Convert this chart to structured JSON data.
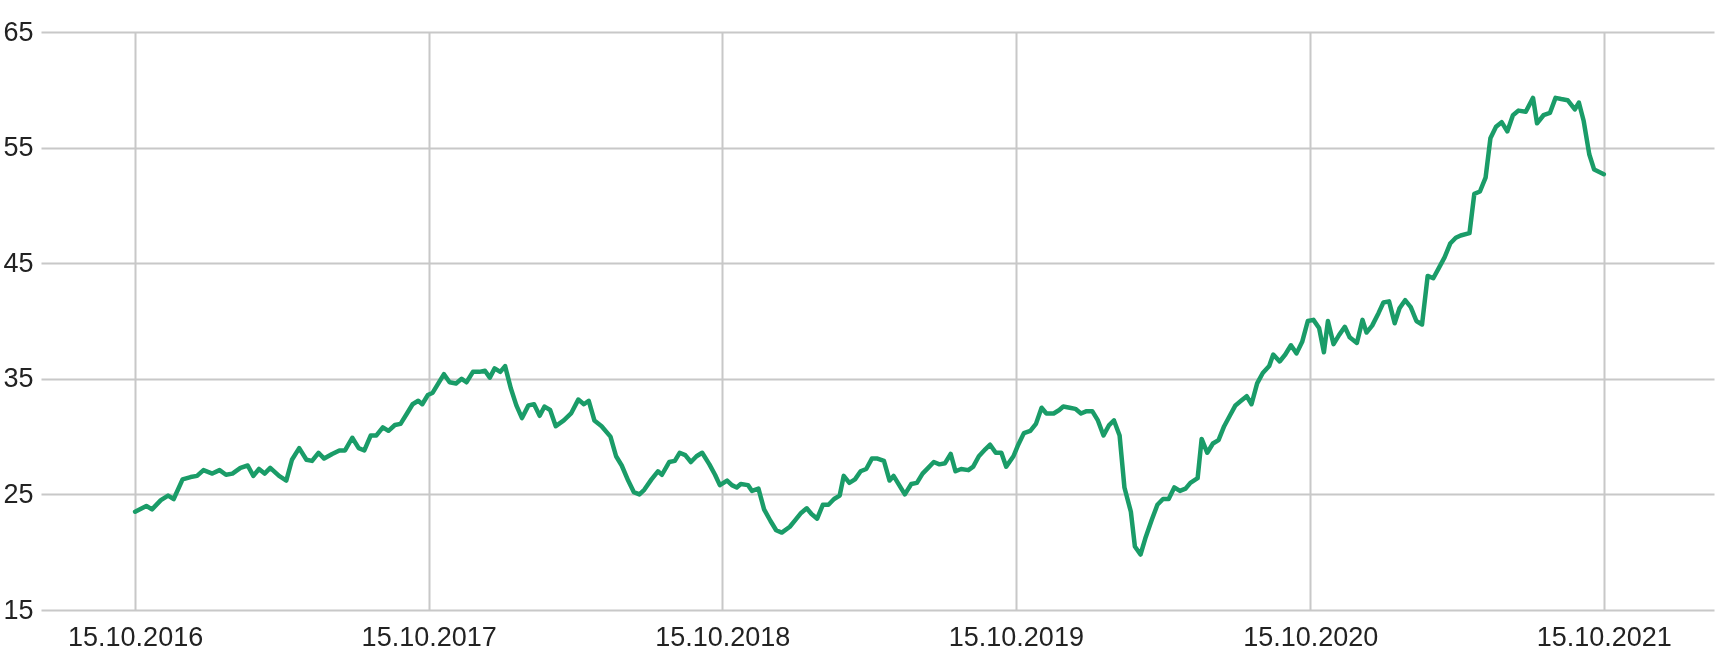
{
  "chart_data": {
    "type": "line",
    "x": [
      "2016-10-15",
      "2016-10-29",
      "2016-11-05",
      "2016-11-16",
      "2016-11-25",
      "2016-12-02",
      "2016-12-13",
      "2016-12-23",
      "2016-12-31",
      "2017-01-08",
      "2017-01-19",
      "2017-01-28",
      "2017-02-05",
      "2017-02-13",
      "2017-02-23",
      "2017-03-04",
      "2017-03-11",
      "2017-03-18",
      "2017-03-25",
      "2017-04-01",
      "2017-04-12",
      "2017-04-21",
      "2017-04-28",
      "2017-05-07",
      "2017-05-16",
      "2017-05-23",
      "2017-05-31",
      "2017-06-07",
      "2017-06-17",
      "2017-06-26",
      "2017-07-03",
      "2017-07-12",
      "2017-07-20",
      "2017-07-27",
      "2017-08-04",
      "2017-08-11",
      "2017-08-19",
      "2017-08-26",
      "2017-09-03",
      "2017-09-10",
      "2017-09-18",
      "2017-09-25",
      "2017-10-02",
      "2017-10-07",
      "2017-10-14",
      "2017-10-20",
      "2017-10-27",
      "2017-11-03",
      "2017-11-10",
      "2017-11-18",
      "2017-11-25",
      "2017-12-01",
      "2017-12-09",
      "2017-12-17",
      "2017-12-24",
      "2017-12-30",
      "2018-01-05",
      "2018-01-12",
      "2018-01-18",
      "2018-01-25",
      "2018-02-01",
      "2018-02-08",
      "2018-02-16",
      "2018-02-23",
      "2018-03-02",
      "2018-03-08",
      "2018-03-15",
      "2018-03-22",
      "2018-04-01",
      "2018-04-10",
      "2018-04-19",
      "2018-04-26",
      "2018-05-02",
      "2018-05-09",
      "2018-05-18",
      "2018-05-29",
      "2018-06-05",
      "2018-06-12",
      "2018-06-20",
      "2018-06-27",
      "2018-07-04",
      "2018-07-10",
      "2018-07-19",
      "2018-07-27",
      "2018-08-01",
      "2018-08-10",
      "2018-08-17",
      "2018-08-23",
      "2018-08-30",
      "2018-09-06",
      "2018-09-13",
      "2018-09-20",
      "2018-09-29",
      "2018-10-06",
      "2018-10-12",
      "2018-10-21",
      "2018-10-27",
      "2018-11-02",
      "2018-11-07",
      "2018-11-16",
      "2018-11-21",
      "2018-11-29",
      "2018-12-06",
      "2018-12-14",
      "2018-12-21",
      "2018-12-28",
      "2019-01-07",
      "2019-01-14",
      "2019-01-21",
      "2019-01-28",
      "2019-02-03",
      "2019-02-10",
      "2019-02-17",
      "2019-02-24",
      "2019-03-03",
      "2019-03-10",
      "2019-03-15",
      "2019-03-22",
      "2019-03-29",
      "2019-04-05",
      "2019-04-12",
      "2019-04-19",
      "2019-04-26",
      "2019-05-04",
      "2019-05-11",
      "2019-05-16",
      "2019-05-23",
      "2019-05-30",
      "2019-06-07",
      "2019-06-14",
      "2019-06-21",
      "2019-06-28",
      "2019-07-05",
      "2019-07-12",
      "2019-07-19",
      "2019-07-26",
      "2019-08-01",
      "2019-08-08",
      "2019-08-17",
      "2019-08-23",
      "2019-08-30",
      "2019-09-07",
      "2019-09-13",
      "2019-09-20",
      "2019-09-27",
      "2019-10-03",
      "2019-10-12",
      "2019-10-18",
      "2019-10-25",
      "2019-11-02",
      "2019-11-09",
      "2019-11-16",
      "2019-11-22",
      "2019-12-01",
      "2019-12-08",
      "2019-12-13",
      "2019-12-21",
      "2019-12-28",
      "2020-01-04",
      "2020-01-11",
      "2020-01-18",
      "2020-01-25",
      "2020-02-01",
      "2020-02-08",
      "2020-02-14",
      "2020-02-21",
      "2020-02-27",
      "2020-03-06",
      "2020-03-11",
      "2020-03-18",
      "2020-03-24",
      "2020-04-01",
      "2020-04-08",
      "2020-04-15",
      "2020-04-22",
      "2020-04-29",
      "2020-05-06",
      "2020-05-13",
      "2020-05-19",
      "2020-05-28",
      "2020-06-02",
      "2020-06-09",
      "2020-06-16",
      "2020-06-23",
      "2020-06-30",
      "2020-07-07",
      "2020-07-14",
      "2020-07-21",
      "2020-07-28",
      "2020-08-03",
      "2020-08-10",
      "2020-08-17",
      "2020-08-25",
      "2020-08-30",
      "2020-09-07",
      "2020-09-14",
      "2020-09-21",
      "2020-09-28",
      "2020-10-05",
      "2020-10-12",
      "2020-10-19",
      "2020-10-26",
      "2020-11-01",
      "2020-11-06",
      "2020-11-13",
      "2020-11-20",
      "2020-11-27",
      "2020-12-03",
      "2020-12-12",
      "2020-12-19",
      "2020-12-24",
      "2020-12-31",
      "2021-01-08",
      "2021-01-14",
      "2021-01-21",
      "2021-01-28",
      "2021-02-03",
      "2021-02-10",
      "2021-02-17",
      "2021-02-24",
      "2021-03-03",
      "2021-03-10",
      "2021-03-17",
      "2021-03-24",
      "2021-03-31",
      "2021-04-07",
      "2021-04-14",
      "2021-04-20",
      "2021-05-01",
      "2021-05-07",
      "2021-05-14",
      "2021-05-21",
      "2021-05-27",
      "2021-06-03",
      "2021-06-10",
      "2021-06-17",
      "2021-06-24",
      "2021-07-01",
      "2021-07-10",
      "2021-07-19",
      "2021-07-24",
      "2021-08-01",
      "2021-08-09",
      "2021-08-16",
      "2021-08-23",
      "2021-08-31",
      "2021-09-09",
      "2021-09-14",
      "2021-09-20",
      "2021-09-27",
      "2021-10-03",
      "2021-10-15"
    ],
    "series": [
      {
        "color": "#1a9c68",
        "values": [
          23.5,
          24.0,
          23.7,
          24.5,
          24.9,
          24.6,
          26.3,
          26.5,
          26.6,
          27.1,
          26.8,
          27.1,
          26.7,
          26.8,
          27.3,
          27.5,
          26.6,
          27.2,
          26.8,
          27.3,
          26.6,
          26.2,
          28.0,
          29.0,
          28.0,
          27.9,
          28.6,
          28.1,
          28.5,
          28.8,
          28.8,
          29.9,
          29.0,
          28.8,
          30.1,
          30.1,
          30.8,
          30.5,
          31.0,
          31.1,
          32.0,
          32.8,
          33.1,
          32.8,
          33.6,
          33.8,
          34.6,
          35.4,
          34.7,
          34.6,
          35.0,
          34.7,
          35.6,
          35.6,
          35.7,
          35.1,
          35.9,
          35.6,
          36.1,
          34.2,
          32.7,
          31.6,
          32.7,
          32.8,
          31.8,
          32.6,
          32.3,
          30.9,
          31.4,
          32.0,
          33.2,
          32.8,
          33.1,
          31.4,
          30.9,
          30.0,
          28.3,
          27.5,
          26.2,
          25.2,
          25.0,
          25.4,
          26.3,
          27.0,
          26.7,
          27.8,
          27.9,
          28.6,
          28.4,
          27.8,
          28.3,
          28.6,
          27.6,
          26.7,
          25.8,
          26.2,
          25.8,
          25.6,
          25.9,
          25.8,
          25.3,
          25.5,
          23.7,
          22.7,
          21.9,
          21.7,
          22.2,
          22.8,
          23.4,
          23.8,
          23.3,
          22.9,
          24.1,
          24.1,
          24.6,
          24.9,
          26.6,
          26.0,
          26.3,
          27.0,
          27.2,
          28.1,
          28.1,
          27.9,
          26.2,
          26.6,
          25.8,
          25.0,
          25.9,
          26.0,
          26.8,
          27.3,
          27.8,
          27.6,
          27.7,
          28.5,
          27.0,
          27.2,
          27.1,
          27.4,
          28.3,
          28.9,
          29.3,
          28.6,
          28.6,
          27.4,
          28.3,
          29.3,
          30.3,
          30.5,
          31.1,
          32.5,
          32.0,
          32.0,
          32.3,
          32.6,
          32.5,
          32.4,
          32.0,
          32.2,
          32.2,
          31.4,
          30.1,
          31.0,
          31.4,
          30.1,
          25.6,
          23.5,
          20.5,
          19.8,
          21.2,
          22.8,
          24.1,
          24.6,
          24.6,
          25.6,
          25.3,
          25.5,
          26.0,
          26.4,
          29.8,
          28.6,
          29.4,
          29.7,
          30.9,
          31.8,
          32.7,
          33.1,
          33.5,
          32.8,
          34.6,
          35.5,
          36.1,
          37.1,
          36.5,
          37.1,
          37.9,
          37.2,
          38.2,
          40.0,
          40.1,
          39.4,
          37.3,
          40.0,
          38.0,
          38.8,
          39.5,
          38.6,
          38.1,
          40.1,
          39.0,
          39.6,
          40.7,
          41.6,
          41.7,
          39.8,
          41.1,
          41.8,
          41.2,
          40.0,
          39.7,
          43.9,
          43.7,
          44.6,
          45.5,
          46.7,
          47.2,
          47.4,
          47.6,
          51.0,
          51.2,
          52.4,
          55.8,
          56.8,
          57.2,
          56.4,
          57.8,
          58.2,
          58.1,
          59.3,
          57.1,
          57.8,
          58.0,
          59.3,
          59.2,
          59.1,
          58.3,
          58.9,
          57.3,
          54.4,
          53.1,
          52.7
        ]
      }
    ],
    "xlim": [
      "2016-06-20",
      "2022-03-01"
    ],
    "xticks": [
      {
        "value": "2016-10-15",
        "label": "15.10.2016"
      },
      {
        "value": "2017-10-15",
        "label": "15.10.2017"
      },
      {
        "value": "2018-10-15",
        "label": "15.10.2018"
      },
      {
        "value": "2019-10-15",
        "label": "15.10.2019"
      },
      {
        "value": "2020-10-15",
        "label": "15.10.2020"
      },
      {
        "value": "2021-10-15",
        "label": "15.10.2021"
      }
    ],
    "ylim": [
      15,
      65
    ],
    "yticks": [
      15,
      25,
      35,
      45,
      55,
      65
    ],
    "grid": true,
    "line_style": "solid",
    "marker": "none"
  }
}
